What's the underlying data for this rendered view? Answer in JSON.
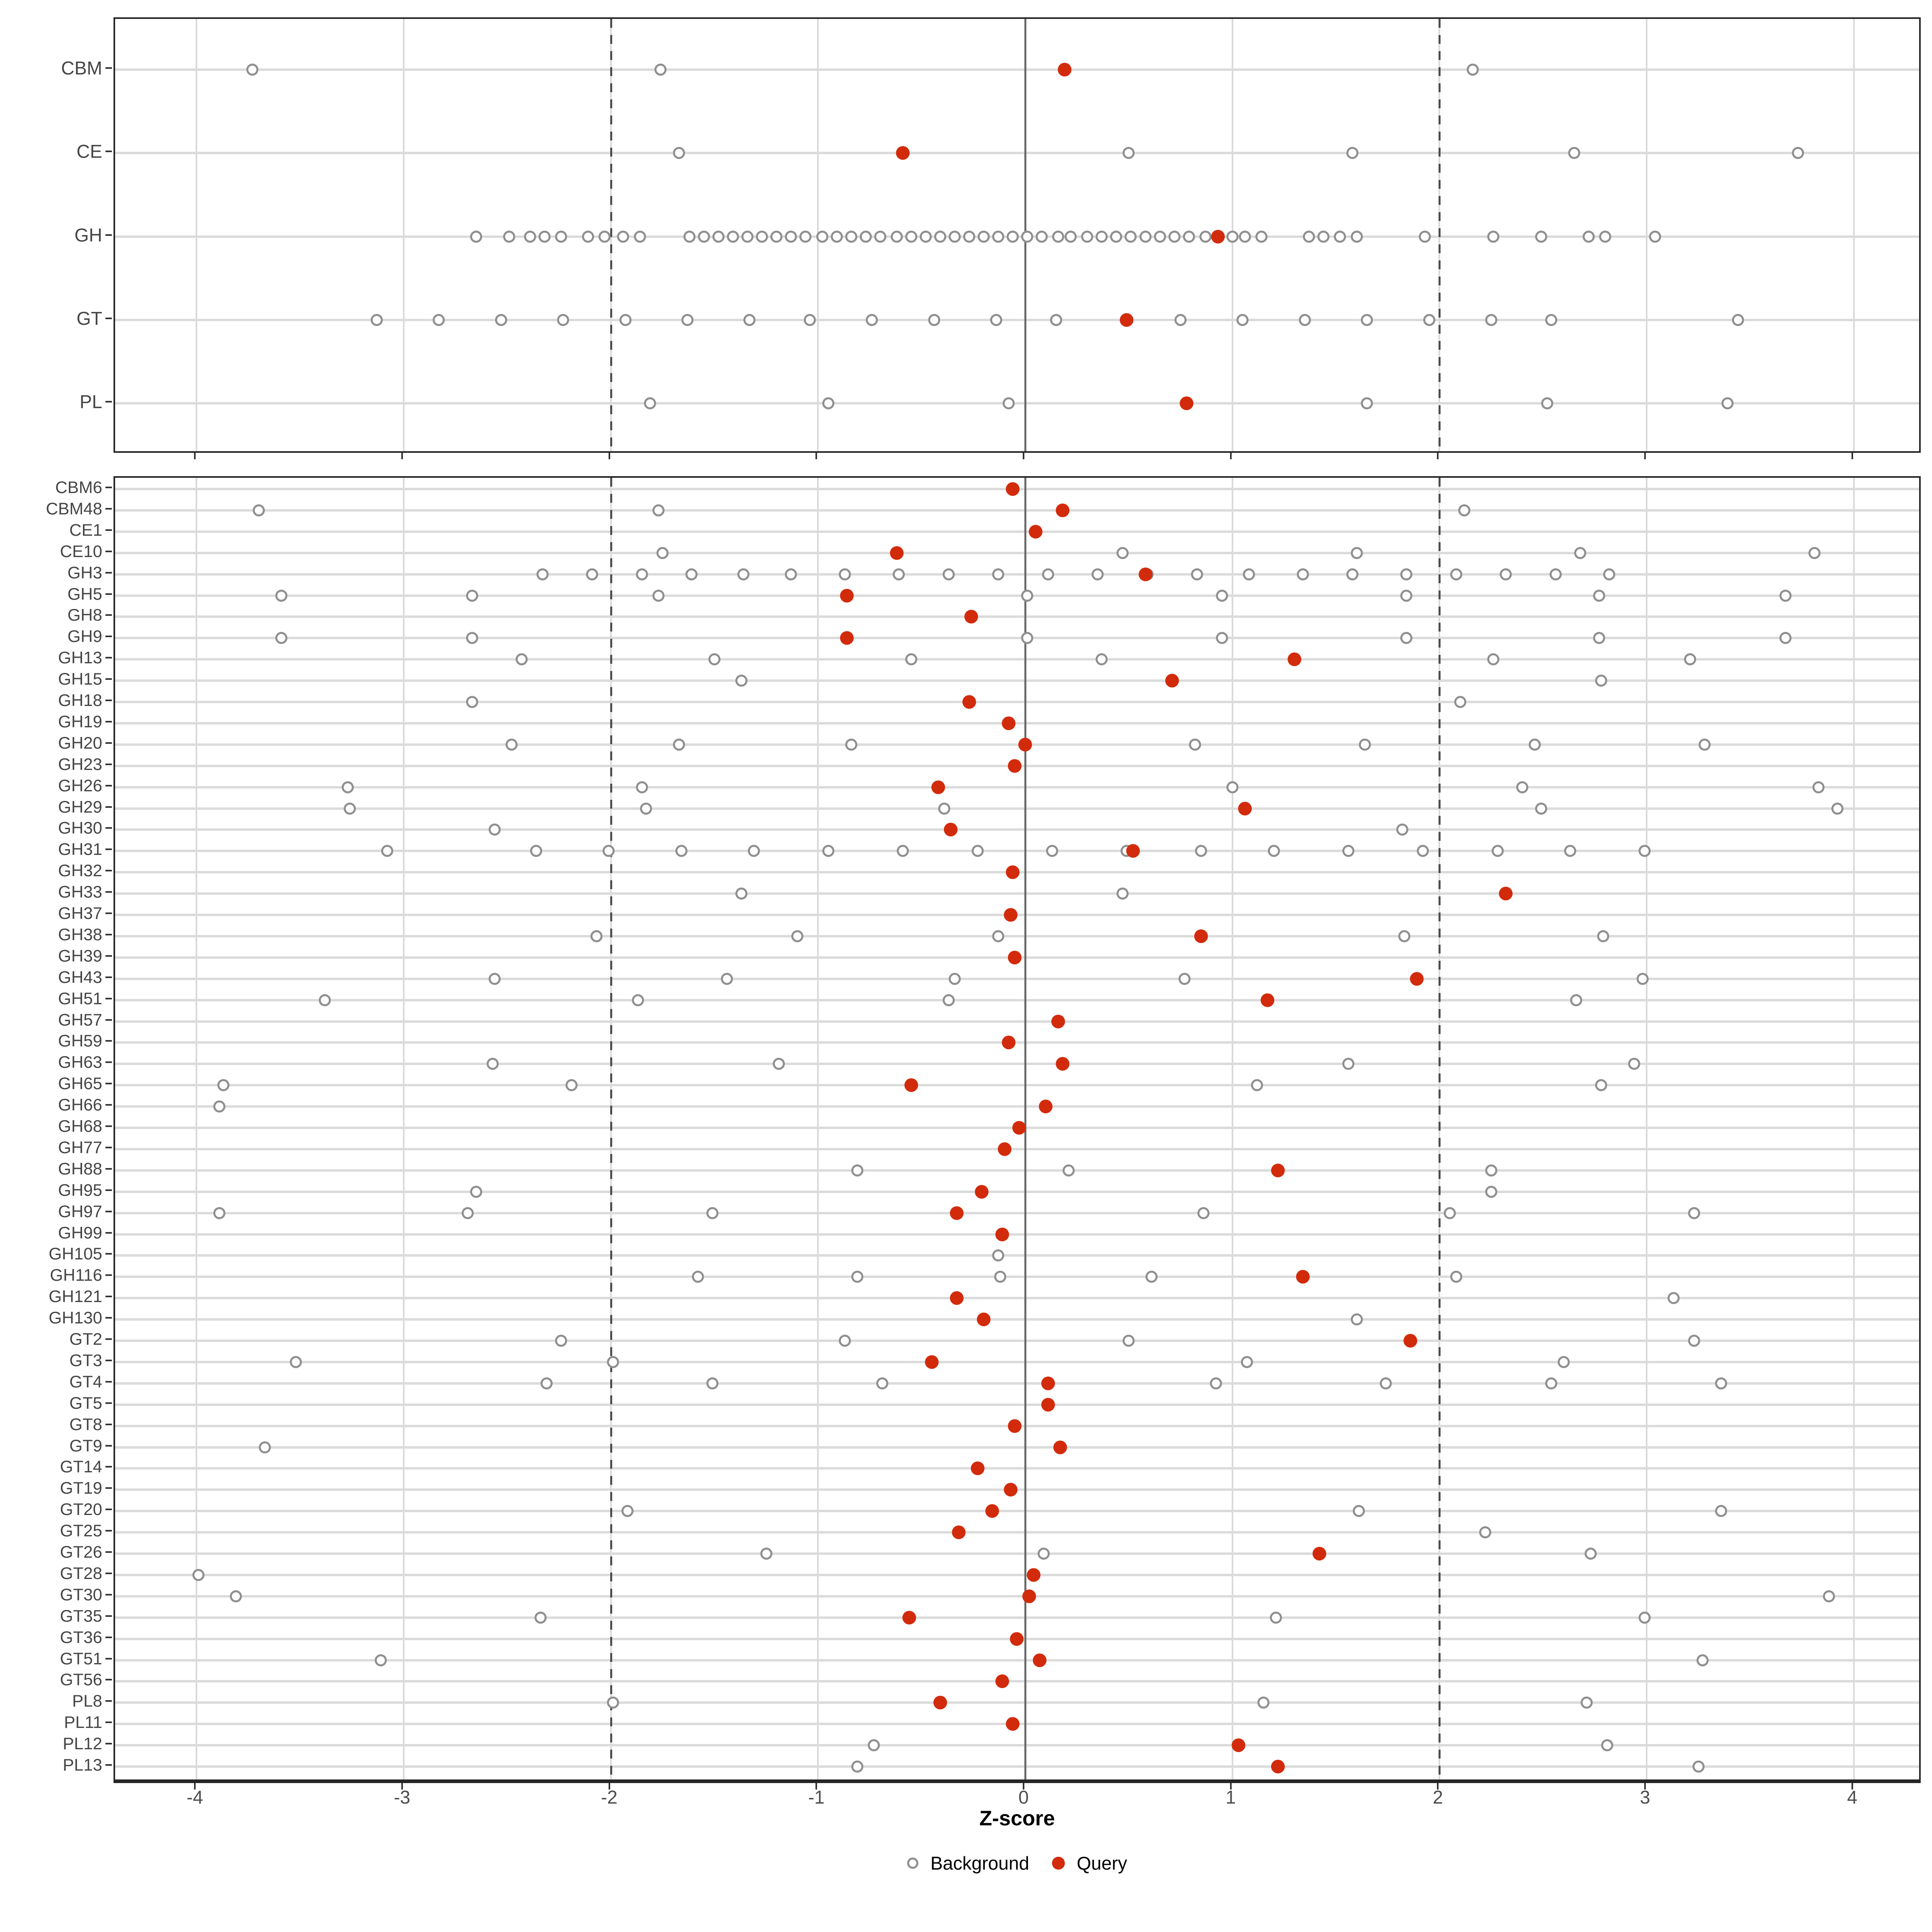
{
  "axis": {
    "label": "Z-score",
    "ticks": [
      -4,
      -3,
      -2,
      -1,
      0,
      1,
      2,
      3,
      4
    ],
    "xlim": [
      -4.39,
      4.33
    ]
  },
  "legend": {
    "items": [
      {
        "label": "Background",
        "marker": "open-circle"
      },
      {
        "label": "Query",
        "marker": "filled-circle"
      }
    ]
  },
  "colors": {
    "query": "#D22B0C",
    "background_stroke": "#8F8F8F",
    "row_gridline": "#DBDBDB",
    "vertical_gridline": "#D9D9D9",
    "zero_line": "#6B6B6B",
    "threshold_line": "#4D4D4D",
    "panel_border": "#262626",
    "axis_text": "#4D4D4D",
    "row_label_text": "#454545"
  },
  "chart_data": {
    "type": "scatter",
    "xlabel": "Z-score",
    "legend_position": "bottom",
    "grid": true,
    "zero_line": 0,
    "threshold_lines": [
      -2,
      2
    ],
    "series_names": [
      "Background",
      "Query"
    ],
    "panels": [
      {
        "name": "enzyme-classes",
        "rows": [
          {
            "label": "CBM",
            "query": 0.19,
            "background": [
              -3.73,
              -1.76,
              2.16
            ]
          },
          {
            "label": "CE",
            "query": -0.59,
            "background": [
              -1.67,
              0.5,
              1.58,
              2.65,
              3.73
            ]
          },
          {
            "label": "GH",
            "query": 0.93,
            "background": [
              -2.65,
              -2.49,
              -2.39,
              -2.32,
              -2.24,
              -2.11,
              -2.03,
              -1.94,
              -1.86,
              -1.62,
              -1.55,
              -1.48,
              -1.41,
              -1.34,
              -1.27,
              -1.2,
              -1.13,
              -1.06,
              -0.98,
              -0.91,
              -0.84,
              -0.77,
              -0.7,
              -0.62,
              -0.55,
              -0.48,
              -0.41,
              -0.34,
              -0.27,
              -0.2,
              -0.13,
              -0.06,
              0.01,
              0.08,
              0.16,
              0.22,
              0.3,
              0.37,
              0.44,
              0.51,
              0.58,
              0.65,
              0.72,
              0.79,
              0.87,
              1.0,
              1.06,
              1.14,
              1.37,
              1.44,
              1.52,
              1.6,
              1.93,
              2.26,
              2.49,
              2.72,
              2.8,
              3.04
            ]
          },
          {
            "label": "GT",
            "query": 0.49,
            "background": [
              -3.13,
              -2.83,
              -2.53,
              -2.23,
              -1.93,
              -1.63,
              -1.33,
              -1.04,
              -0.74,
              -0.44,
              -0.14,
              0.15,
              0.75,
              1.05,
              1.35,
              1.65,
              1.95,
              2.25,
              2.54,
              3.44
            ]
          },
          {
            "label": "PL",
            "query": 0.78,
            "background": [
              -1.81,
              -0.95,
              -0.08,
              1.65,
              2.52,
              3.39
            ]
          }
        ]
      },
      {
        "name": "enzyme-families",
        "rows": [
          {
            "label": "CBM6",
            "query": -0.06,
            "background": []
          },
          {
            "label": "CBM48",
            "query": 0.18,
            "background": [
              -3.7,
              -1.77,
              2.12
            ]
          },
          {
            "label": "CE1",
            "query": 0.05,
            "background": []
          },
          {
            "label": "CE10",
            "query": -0.62,
            "background": [
              -1.75,
              0.47,
              1.6,
              2.68,
              3.81
            ]
          },
          {
            "label": "GH3",
            "query": 0.58,
            "background": [
              -2.33,
              -2.09,
              -1.85,
              -1.61,
              -1.36,
              -1.13,
              -0.87,
              -0.61,
              -0.37,
              -0.13,
              0.11,
              0.35,
              0.59,
              0.83,
              1.08,
              1.34,
              1.58,
              1.84,
              2.08,
              2.32,
              2.56,
              2.82
            ]
          },
          {
            "label": "GH5",
            "query": -0.86,
            "background": [
              -3.59,
              -2.67,
              -1.77,
              0.01,
              0.95,
              1.84,
              2.77,
              3.67
            ]
          },
          {
            "label": "GH8",
            "query": -0.26,
            "background": []
          },
          {
            "label": "GH9",
            "query": -0.86,
            "background": [
              -3.59,
              -2.67,
              0.01,
              0.95,
              1.84,
              2.77,
              3.67
            ]
          },
          {
            "label": "GH13",
            "query": 1.3,
            "background": [
              -2.43,
              -1.5,
              -0.55,
              0.37,
              2.26,
              3.21
            ]
          },
          {
            "label": "GH15",
            "query": 0.71,
            "background": [
              -1.37,
              2.78
            ]
          },
          {
            "label": "GH18",
            "query": -0.27,
            "background": [
              -2.67,
              2.1
            ]
          },
          {
            "label": "GH19",
            "query": -0.08,
            "background": []
          },
          {
            "label": "GH20",
            "query": 0.0,
            "background": [
              -2.48,
              -1.67,
              -0.84,
              0.82,
              1.64,
              2.46,
              3.28
            ]
          },
          {
            "label": "GH23",
            "query": -0.05,
            "background": []
          },
          {
            "label": "GH26",
            "query": -0.42,
            "background": [
              -3.27,
              -1.85,
              1.0,
              2.4,
              3.83
            ]
          },
          {
            "label": "GH29",
            "query": 1.06,
            "background": [
              -3.26,
              -1.83,
              -0.39,
              2.49,
              3.92
            ]
          },
          {
            "label": "GH30",
            "query": -0.36,
            "background": [
              -2.56,
              1.82
            ]
          },
          {
            "label": "GH31",
            "query": 0.52,
            "background": [
              -3.08,
              -2.36,
              -2.01,
              -1.66,
              -1.31,
              -0.95,
              -0.59,
              -0.23,
              0.13,
              0.49,
              0.85,
              1.2,
              1.56,
              1.92,
              2.28,
              2.63,
              2.99
            ]
          },
          {
            "label": "GH32",
            "query": -0.06,
            "background": []
          },
          {
            "label": "GH33",
            "query": 2.32,
            "background": [
              -1.37,
              0.47
            ]
          },
          {
            "label": "GH37",
            "query": -0.07,
            "background": []
          },
          {
            "label": "GH38",
            "query": 0.85,
            "background": [
              -2.07,
              -1.1,
              -0.13,
              1.83,
              2.79
            ]
          },
          {
            "label": "GH39",
            "query": -0.05,
            "background": []
          },
          {
            "label": "GH43",
            "query": 1.89,
            "background": [
              -2.56,
              -1.44,
              -0.34,
              0.77,
              2.98
            ]
          },
          {
            "label": "GH51",
            "query": 1.17,
            "background": [
              -3.38,
              -1.87,
              -0.37,
              2.66
            ]
          },
          {
            "label": "GH57",
            "query": 0.16,
            "background": []
          },
          {
            "label": "GH59",
            "query": -0.08,
            "background": []
          },
          {
            "label": "GH63",
            "query": 0.18,
            "background": [
              -2.57,
              -1.19,
              1.56,
              2.94
            ]
          },
          {
            "label": "GH65",
            "query": -0.55,
            "background": [
              -3.87,
              -2.19,
              1.12,
              2.78
            ]
          },
          {
            "label": "GH66",
            "query": 0.1,
            "background": [
              -3.89
            ]
          },
          {
            "label": "GH68",
            "query": -0.03,
            "background": []
          },
          {
            "label": "GH77",
            "query": -0.1,
            "background": []
          },
          {
            "label": "GH88",
            "query": 1.22,
            "background": [
              -0.81,
              0.21,
              2.25
            ]
          },
          {
            "label": "GH95",
            "query": -0.21,
            "background": [
              -2.65,
              2.25
            ]
          },
          {
            "label": "GH97",
            "query": -0.33,
            "background": [
              -3.89,
              -2.69,
              -1.51,
              0.86,
              2.05,
              3.23
            ]
          },
          {
            "label": "GH99",
            "query": -0.11,
            "background": []
          },
          {
            "label": "GH105",
            "query": null,
            "background": [
              -0.13
            ]
          },
          {
            "label": "GH116",
            "query": 1.34,
            "background": [
              -1.58,
              -0.81,
              -0.12,
              0.61,
              2.08
            ]
          },
          {
            "label": "GH121",
            "query": -0.33,
            "background": [
              3.13
            ]
          },
          {
            "label": "GH130",
            "query": -0.2,
            "background": [
              1.6
            ]
          },
          {
            "label": "GT2",
            "query": 1.86,
            "background": [
              -2.24,
              -0.87,
              0.5,
              3.23
            ]
          },
          {
            "label": "GT3",
            "query": -0.45,
            "background": [
              -3.52,
              -1.99,
              1.07,
              2.6
            ]
          },
          {
            "label": "GT4",
            "query": 0.11,
            "background": [
              -2.31,
              -1.51,
              -0.69,
              0.92,
              1.74,
              2.54,
              3.36
            ]
          },
          {
            "label": "GT5",
            "query": 0.11,
            "background": []
          },
          {
            "label": "GT8",
            "query": -0.05,
            "background": []
          },
          {
            "label": "GT9",
            "query": 0.17,
            "background": [
              -3.67
            ]
          },
          {
            "label": "GT14",
            "query": -0.23,
            "background": []
          },
          {
            "label": "GT19",
            "query": -0.07,
            "background": []
          },
          {
            "label": "GT20",
            "query": -0.16,
            "background": [
              -1.92,
              1.61,
              3.36
            ]
          },
          {
            "label": "GT25",
            "query": -0.32,
            "background": [
              2.22
            ]
          },
          {
            "label": "GT26",
            "query": 1.42,
            "background": [
              -1.25,
              0.09,
              2.73
            ]
          },
          {
            "label": "GT28",
            "query": 0.04,
            "background": [
              -3.99
            ]
          },
          {
            "label": "GT30",
            "query": 0.02,
            "background": [
              -3.81,
              3.88
            ]
          },
          {
            "label": "GT35",
            "query": -0.56,
            "background": [
              -2.34,
              1.21,
              2.99
            ]
          },
          {
            "label": "GT36",
            "query": -0.04,
            "background": []
          },
          {
            "label": "GT51",
            "query": 0.07,
            "background": [
              -3.11,
              3.27
            ]
          },
          {
            "label": "GT56",
            "query": -0.11,
            "background": []
          },
          {
            "label": "PL8",
            "query": -0.41,
            "background": [
              -1.99,
              1.15,
              2.71
            ]
          },
          {
            "label": "PL11",
            "query": -0.06,
            "background": []
          },
          {
            "label": "PL12",
            "query": 1.03,
            "background": [
              -0.73,
              2.81
            ]
          },
          {
            "label": "PL13",
            "query": 1.22,
            "background": [
              -0.81,
              3.25
            ]
          }
        ]
      }
    ]
  }
}
